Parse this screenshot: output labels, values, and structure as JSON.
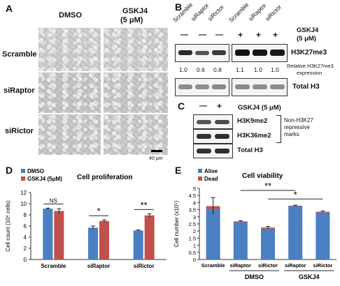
{
  "panel_a": {
    "letter": "A",
    "col_labels": [
      "DMSO",
      "GSKJ4",
      "(5 μM)"
    ],
    "row_labels": [
      "Scramble",
      "siRaptor",
      "siRictor"
    ],
    "scale_bar": "40 μm"
  },
  "panel_b": {
    "letter": "B",
    "lane_labels": [
      "Scramble",
      "siRaptor",
      "siRictor",
      "Scramble",
      "siRaptor",
      "siRictor"
    ],
    "treatment_signs": [
      "—",
      "—",
      "—",
      "+",
      "+",
      "+"
    ],
    "treatment_label": "GSKJ4",
    "treatment_label_2": "(5 μM)",
    "blot_top_label": "H3K27me3",
    "relative_values": [
      "1.0",
      "0.6",
      "0.8",
      "1.1",
      "1.0",
      "1.0"
    ],
    "relative_label_1": "Relative H3K27me3",
    "relative_label_2": "expression",
    "blot_bottom_label": "Total H3"
  },
  "panel_c": {
    "letter": "C",
    "signs": [
      "—",
      "+"
    ],
    "treatment_label": "GSKJ4 (5 μM)",
    "blot_labels": [
      "H3K9me2",
      "H3K36me2",
      "Total H3"
    ],
    "bracket_note": [
      "Non-H3K27",
      "repressive",
      "marks"
    ]
  },
  "panel_d": {
    "letter": "D",
    "chart_data": {
      "type": "bar",
      "title": "Cell proliferation",
      "categories": [
        "Scramble",
        "siRaptor",
        "siRictor"
      ],
      "series": [
        {
          "name": "DMSO",
          "values": [
            9.1,
            5.7,
            5.2
          ],
          "errors": [
            0.1,
            0.3,
            0.1
          ],
          "color": "#4a7fc1"
        },
        {
          "name": "GSKJ4 (5μM)",
          "values": [
            8.7,
            6.9,
            7.9
          ],
          "errors": [
            0.4,
            0.2,
            0.3
          ],
          "color": "#c0504d"
        }
      ],
      "ylabel": "Cell count (10⁶ cells)",
      "ylim": [
        0,
        12
      ],
      "yticks": [
        "0",
        "2",
        "4",
        "6",
        "8",
        "10",
        "12"
      ],
      "significance": [
        "NS",
        "*",
        "**"
      ]
    }
  },
  "panel_e": {
    "letter": "E",
    "chart_data": {
      "type": "bar",
      "stacked": true,
      "title": "Cell viability",
      "categories": [
        "Scramble",
        "siRaptor",
        "siRictor",
        "siRaptor",
        "siRictor"
      ],
      "groups": [
        "DMSO",
        "GSKJ4"
      ],
      "series": [
        {
          "name": "Alive",
          "values": [
            3.55,
            2.62,
            2.17,
            3.75,
            3.3
          ],
          "color": "#4a7fc1"
        },
        {
          "name": "Dead",
          "values": [
            0.2,
            0.06,
            0.08,
            0.03,
            0.06
          ],
          "color": "#c0504d"
        }
      ],
      "error": [
        0.6,
        0.05,
        0.08,
        0.04,
        0.05
      ],
      "ylabel": "Cell number (x10⁵)",
      "ylim": [
        0,
        5
      ],
      "yticks": [
        "0",
        "0.5",
        "1",
        "1.5",
        "2",
        "2.5",
        "3",
        "3.5",
        "4",
        "4.5",
        "5"
      ],
      "significance": [
        "**",
        "*"
      ]
    }
  }
}
